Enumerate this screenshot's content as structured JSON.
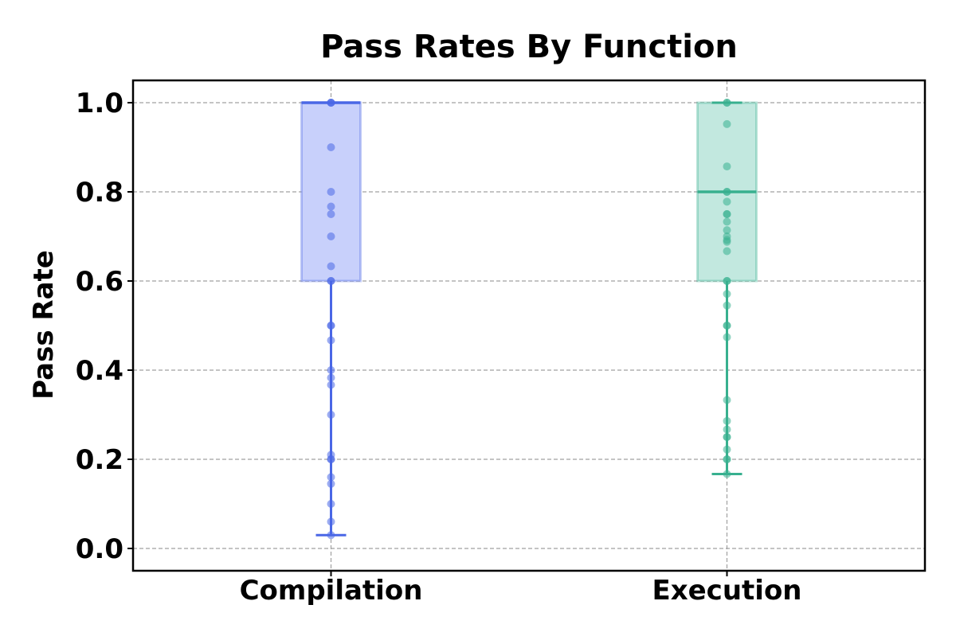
{
  "chart_data": {
    "type": "box",
    "title": "Pass Rates By Function",
    "xlabel": "",
    "ylabel": "Pass Rate",
    "categories": [
      "Compilation",
      "Execution"
    ],
    "ylim": [
      -0.05,
      1.05
    ],
    "yticks": [
      "0.0",
      "0.2",
      "0.4",
      "0.6",
      "0.8",
      "1.0"
    ],
    "grid": true,
    "series": [
      {
        "category": "Compilation",
        "color": "#4a67e6",
        "fill": "#c8d0fb",
        "whisker_low": 0.03,
        "q1": 0.6,
        "median": 1.0,
        "q3": 1.0,
        "whisker_high": 1.0,
        "points": [
          1.0,
          1.0,
          1.0,
          0.9,
          0.8,
          0.767,
          0.75,
          0.7,
          0.633,
          0.6,
          0.6,
          0.5,
          0.5,
          0.467,
          0.4,
          0.383,
          0.367,
          0.3,
          0.21,
          0.2,
          0.2,
          0.16,
          0.145,
          0.1,
          0.06,
          0.03
        ]
      },
      {
        "category": "Execution",
        "color": "#38b08f",
        "fill": "#c2e8df",
        "whisker_low": 0.167,
        "q1": 0.6,
        "median": 0.8,
        "q3": 1.0,
        "whisker_high": 1.0,
        "points": [
          1.0,
          1.0,
          0.952,
          0.857,
          0.8,
          0.8,
          0.778,
          0.75,
          0.75,
          0.733,
          0.714,
          0.7,
          0.692,
          0.688,
          0.667,
          0.6,
          0.6,
          0.571,
          0.545,
          0.5,
          0.5,
          0.474,
          0.333,
          0.286,
          0.267,
          0.25,
          0.25,
          0.222,
          0.2,
          0.2,
          0.167
        ]
      }
    ]
  }
}
